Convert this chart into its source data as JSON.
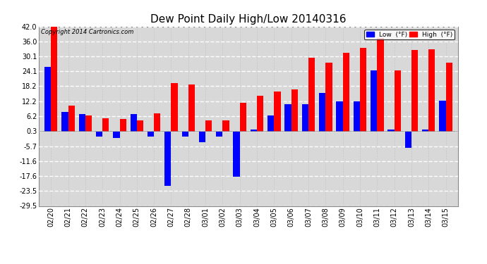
{
  "title": "Dew Point Daily High/Low 20140316",
  "copyright": "Copyright 2014 Cartronics.com",
  "dates": [
    "02/20",
    "02/21",
    "02/22",
    "02/23",
    "02/24",
    "02/25",
    "02/26",
    "02/27",
    "02/28",
    "03/01",
    "03/02",
    "03/03",
    "03/04",
    "03/05",
    "03/06",
    "03/07",
    "03/08",
    "03/09",
    "03/10",
    "03/11",
    "03/12",
    "03/13",
    "03/14",
    "03/15"
  ],
  "high_vals": [
    42.0,
    10.5,
    6.5,
    5.5,
    5.0,
    4.5,
    7.5,
    19.5,
    19.0,
    4.5,
    4.5,
    11.5,
    14.5,
    16.0,
    17.0,
    29.5,
    27.5,
    31.5,
    33.5,
    37.5,
    24.5,
    32.5,
    33.0,
    27.5
  ],
  "low_vals": [
    26.0,
    8.0,
    7.0,
    -2.0,
    -2.5,
    7.0,
    -2.0,
    -21.5,
    -2.0,
    -4.0,
    -2.0,
    -18.0,
    1.0,
    6.5,
    11.0,
    11.0,
    15.5,
    12.0,
    12.0,
    24.5,
    1.0,
    -6.5,
    1.0,
    12.5
  ],
  "high_color": "#ff0000",
  "low_color": "#0000ff",
  "bg_color": "#ffffff",
  "plot_bg": "#ffffff",
  "grid_color": "#c8c8c8",
  "ylim": [
    -29.5,
    42.0
  ],
  "yticks": [
    42.0,
    36.0,
    30.1,
    24.1,
    18.2,
    12.2,
    6.2,
    0.3,
    -5.7,
    -11.6,
    -17.6,
    -23.5,
    -29.5
  ],
  "title_fontsize": 11,
  "legend_low_label": "Low  (°F)",
  "legend_high_label": "High  (°F)"
}
